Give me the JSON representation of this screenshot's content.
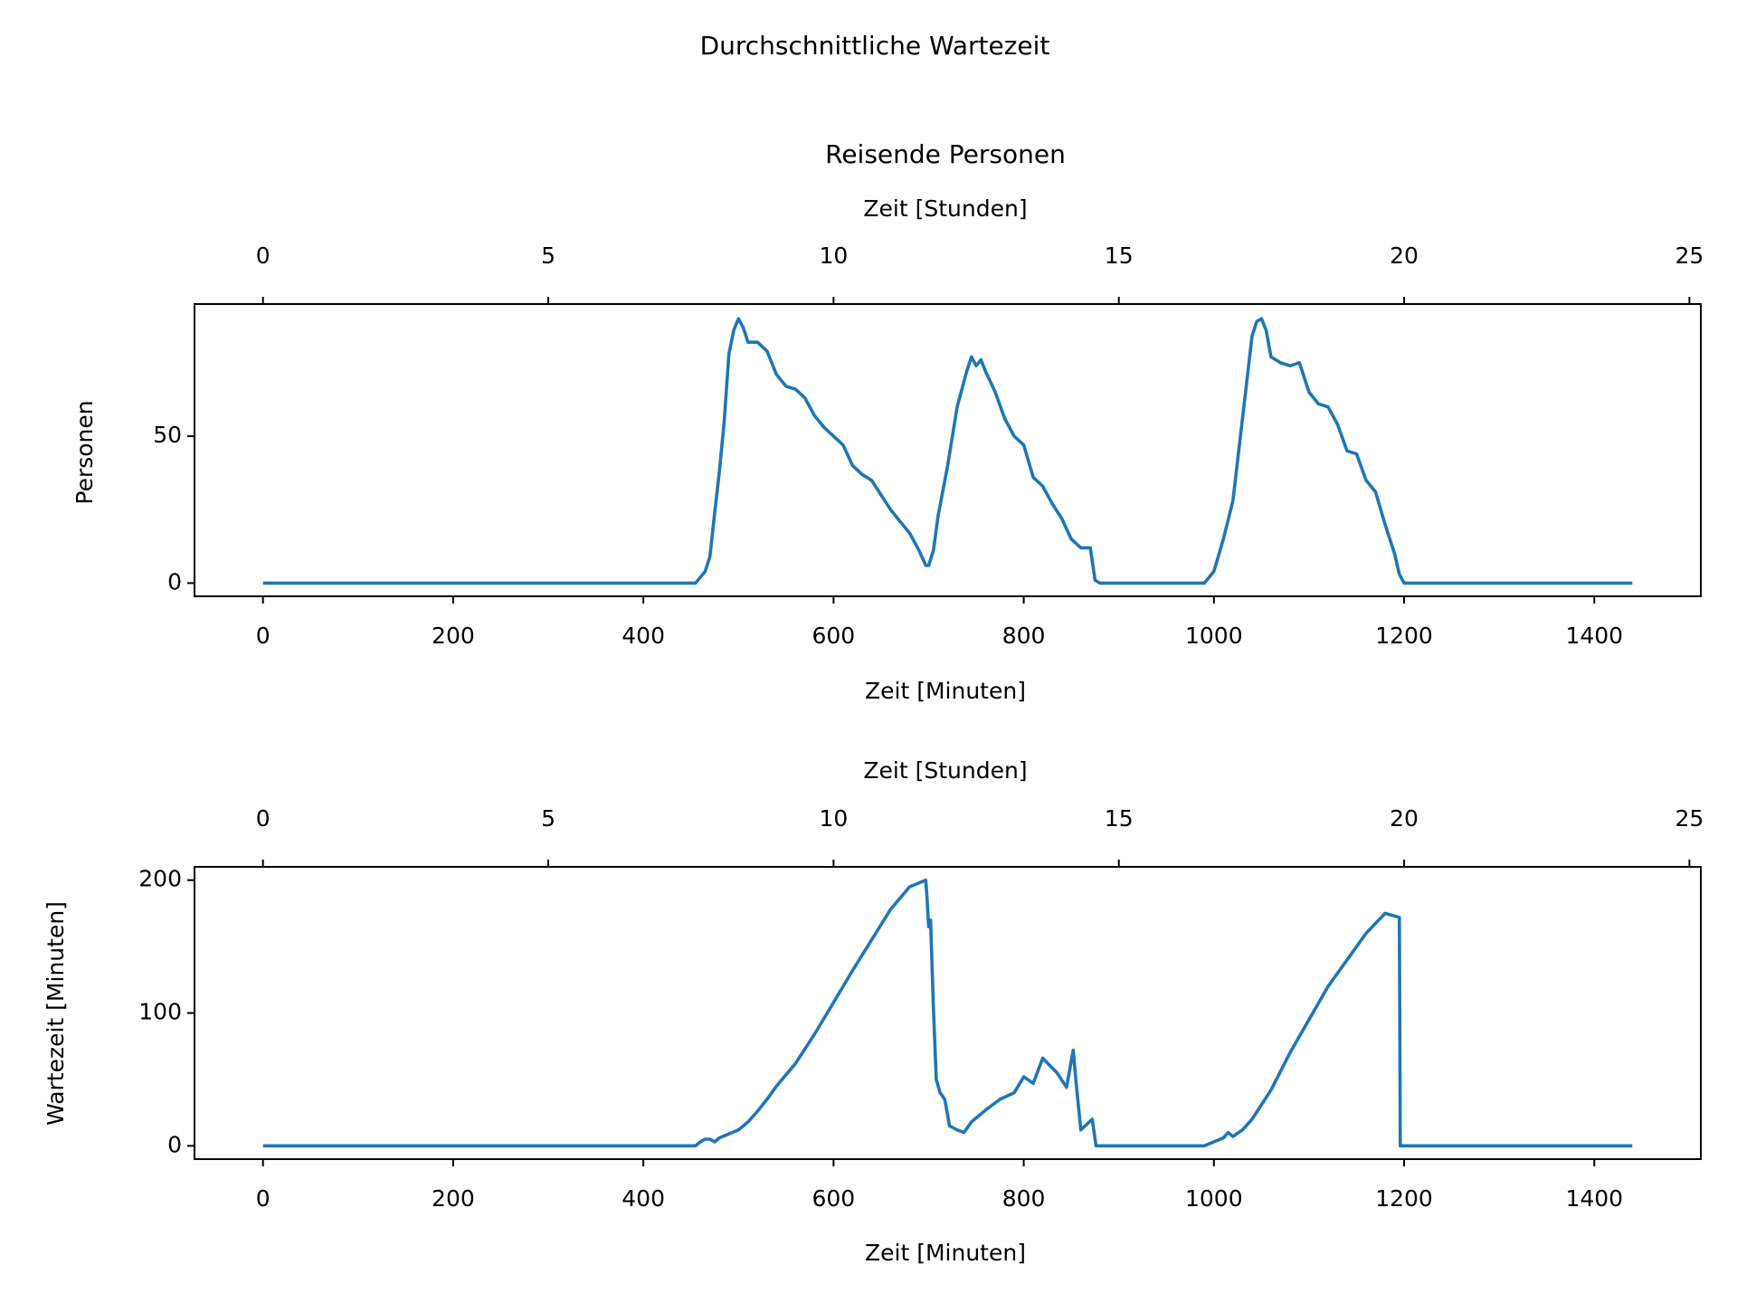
{
  "figure": {
    "suptitle": "Durchschnittliche Wartezeit"
  },
  "chart_data": [
    {
      "type": "line",
      "title": "Reisende Personen",
      "xlabel": "Zeit [Minuten]",
      "ylabel": "Personen",
      "secondary_xlabel": "Zeit [Stunden]",
      "xlim": [
        -72,
        1512
      ],
      "ylim": [
        -4.5,
        95
      ],
      "xticks": [
        0,
        200,
        400,
        600,
        800,
        1000,
        1200,
        1400
      ],
      "xtick_labels": [
        "0",
        "200",
        "400",
        "600",
        "800",
        "1000",
        "1200",
        "1400"
      ],
      "yticks": [
        0,
        50
      ],
      "ytick_labels": [
        "0",
        "50"
      ],
      "secondary_xticks": [
        0,
        5,
        10,
        15,
        20,
        25
      ],
      "secondary_xtick_labels": [
        "0",
        "5",
        "10",
        "15",
        "20",
        "25"
      ],
      "grid": false,
      "color": "#1f77b4",
      "series": [
        {
          "x": [
            0,
            455,
            460,
            465,
            470,
            475,
            480,
            485,
            490,
            495,
            500,
            505,
            510,
            520,
            530,
            540,
            550,
            560,
            570,
            580,
            590,
            600,
            610,
            620,
            630,
            640,
            650,
            660,
            670,
            680,
            690,
            697,
            700,
            705,
            710,
            720,
            730,
            740,
            745,
            750,
            755,
            760,
            770,
            780,
            790,
            800,
            810,
            820,
            830,
            840,
            850,
            860,
            870,
            875,
            880,
            990,
            995,
            1000,
            1010,
            1020,
            1030,
            1040,
            1045,
            1050,
            1055,
            1060,
            1070,
            1080,
            1090,
            1100,
            1110,
            1120,
            1130,
            1140,
            1150,
            1160,
            1170,
            1180,
            1190,
            1195,
            1200,
            1440
          ],
          "y": [
            0,
            0,
            2,
            4,
            9,
            24,
            38,
            55,
            78,
            86,
            90,
            87,
            82,
            82,
            79,
            71,
            67,
            66,
            63,
            57,
            53,
            50,
            47,
            40,
            37,
            35,
            30,
            25,
            21,
            17,
            11,
            6,
            6,
            11,
            23,
            40,
            60,
            72,
            77,
            74,
            76,
            72,
            65,
            56,
            50,
            47,
            36,
            33,
            27,
            22,
            15,
            12,
            12,
            1,
            0,
            0,
            2,
            4,
            15,
            28,
            56,
            84,
            89,
            90,
            86,
            77,
            75,
            74,
            75,
            65,
            61,
            60,
            54,
            45,
            44,
            35,
            31,
            20,
            10,
            3,
            0,
            0
          ]
        }
      ]
    },
    {
      "type": "line",
      "title": "",
      "xlabel": "Zeit [Minuten]",
      "ylabel": "Wartezeit [Minuten]",
      "secondary_xlabel": "Zeit [Stunden]",
      "xlim": [
        -72,
        1512
      ],
      "ylim": [
        -10,
        210
      ],
      "xticks": [
        0,
        200,
        400,
        600,
        800,
        1000,
        1200,
        1400
      ],
      "xtick_labels": [
        "0",
        "200",
        "400",
        "600",
        "800",
        "1000",
        "1200",
        "1400"
      ],
      "yticks": [
        0,
        100,
        200
      ],
      "ytick_labels": [
        "0",
        "100",
        "200"
      ],
      "secondary_xticks": [
        0,
        5,
        10,
        15,
        20,
        25
      ],
      "secondary_xtick_labels": [
        "0",
        "5",
        "10",
        "15",
        "20",
        "25"
      ],
      "grid": false,
      "color": "#1f77b4",
      "series": [
        {
          "x": [
            0,
            455,
            460,
            465,
            470,
            475,
            480,
            490,
            500,
            510,
            520,
            530,
            540,
            560,
            580,
            600,
            620,
            640,
            660,
            680,
            697,
            698,
            700,
            702,
            705,
            708,
            712,
            717,
            722,
            730,
            737,
            745,
            760,
            775,
            790,
            800,
            810,
            820,
            828,
            835,
            845,
            852,
            855,
            860,
            866,
            872,
            876,
            990,
            1000,
            1010,
            1015,
            1020,
            1030,
            1040,
            1060,
            1080,
            1100,
            1120,
            1140,
            1160,
            1180,
            1195,
            1196,
            1198,
            1200,
            1440
          ],
          "y": [
            0,
            0,
            3,
            5,
            5,
            3,
            6,
            9,
            12,
            18,
            26,
            35,
            45,
            62,
            84,
            108,
            132,
            155,
            178,
            195,
            200,
            190,
            165,
            170,
            105,
            50,
            40,
            35,
            15,
            12,
            10,
            18,
            27,
            35,
            40,
            52,
            47,
            66,
            60,
            55,
            44,
            72,
            48,
            12,
            16,
            20,
            0,
            0,
            3,
            6,
            10,
            7,
            12,
            20,
            42,
            70,
            95,
            120,
            140,
            160,
            175,
            172,
            0,
            0,
            0,
            0
          ]
        }
      ]
    }
  ]
}
